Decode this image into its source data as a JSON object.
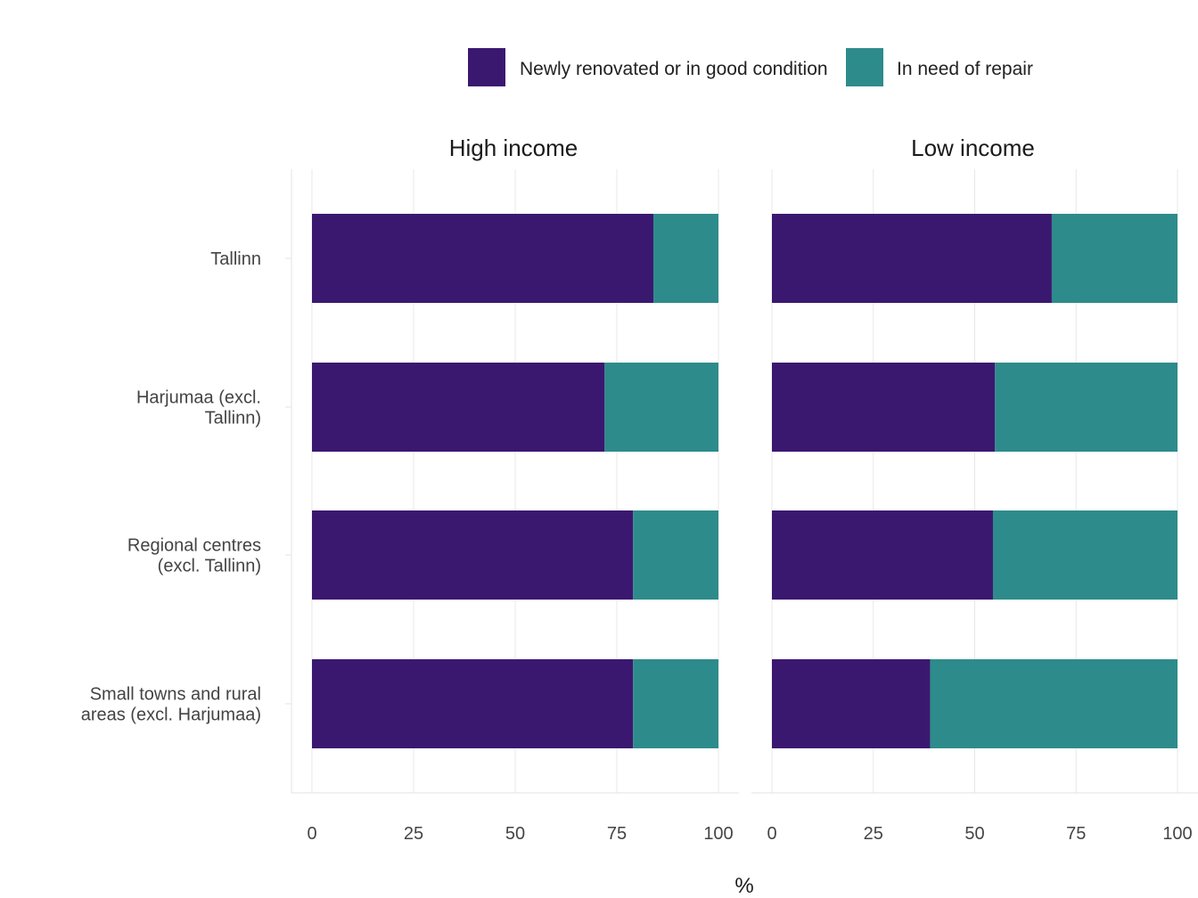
{
  "chart_data": {
    "type": "bar",
    "orientation": "horizontal",
    "stacked": true,
    "title": "",
    "xlabel": "%",
    "ylabel": "",
    "xlim": [
      0,
      100
    ],
    "x_ticks": [
      "0",
      "25",
      "50",
      "75",
      "100"
    ],
    "grid": true,
    "legend_position": "top",
    "categories": [
      "Tallinn",
      "Harjumaa (excl. Tallinn)",
      "Regional centres (excl. Tallinn)",
      "Small towns and rural areas (excl. Harjumaa)"
    ],
    "category_lines": [
      [
        "Tallinn"
      ],
      [
        "Harjumaa (excl.",
        "Tallinn)"
      ],
      [
        "Regional centres",
        "(excl. Tallinn)"
      ],
      [
        "Small towns and rural",
        "areas (excl. Harjumaa)"
      ]
    ],
    "legend": [
      {
        "name": "Newly renovated or in good condition",
        "color": "#3b1870"
      },
      {
        "name": "In need of repair",
        "color": "#2e8b8b"
      }
    ],
    "panels": [
      {
        "title": "High income",
        "series": [
          {
            "name": "Newly renovated or in good condition",
            "values": [
              84,
              72,
              79,
              79
            ]
          },
          {
            "name": "In need of repair",
            "values": [
              16,
              28,
              21,
              21
            ]
          }
        ]
      },
      {
        "title": "Low income",
        "series": [
          {
            "name": "Newly renovated or in good condition",
            "values": [
              69,
              55,
              54.5,
              39
            ]
          },
          {
            "name": "In need of repair",
            "values": [
              31,
              45,
              45.5,
              61
            ]
          }
        ]
      }
    ]
  }
}
